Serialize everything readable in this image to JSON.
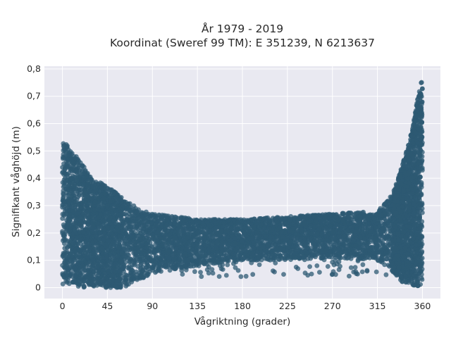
{
  "chart_data": {
    "type": "scatter",
    "title": "År 1979 - 2019",
    "subtitle": "Koordinat (Sweref 99 TM): E 351239, N 6213637",
    "xlabel": "Vågriktning (grader)",
    "ylabel": "Signifikant våghöjd (m)",
    "xlim": [
      -18,
      378
    ],
    "ylim": [
      -0.04,
      0.81
    ],
    "xticks": [
      0,
      45,
      90,
      135,
      180,
      225,
      270,
      315,
      360
    ],
    "yticks": [
      0,
      0.1,
      0.2,
      0.3,
      0.4,
      0.5,
      0.6,
      0.7,
      0.8
    ],
    "ytick_labels": [
      "0",
      "0,1",
      "0,2",
      "0,3",
      "0,4",
      "0,5",
      "0,6",
      "0,7",
      "0,8"
    ],
    "grid": true,
    "colors": {
      "marker": "#2e5a73",
      "plot_bg": "#e9e9f1",
      "grid": "#ffffff"
    },
    "envelope": [
      {
        "x": 0,
        "y_low": 0.01,
        "y_high": 0.54
      },
      {
        "x": 10,
        "y_low": 0.01,
        "y_high": 0.5
      },
      {
        "x": 20,
        "y_low": 0.0,
        "y_high": 0.45
      },
      {
        "x": 30,
        "y_low": 0.0,
        "y_high": 0.4
      },
      {
        "x": 45,
        "y_low": 0.0,
        "y_high": 0.37
      },
      {
        "x": 60,
        "y_low": 0.0,
        "y_high": 0.33
      },
      {
        "x": 75,
        "y_low": 0.02,
        "y_high": 0.29
      },
      {
        "x": 90,
        "y_low": 0.05,
        "y_high": 0.27
      },
      {
        "x": 135,
        "y_low": 0.08,
        "y_high": 0.25
      },
      {
        "x": 180,
        "y_low": 0.1,
        "y_high": 0.25
      },
      {
        "x": 225,
        "y_low": 0.1,
        "y_high": 0.26
      },
      {
        "x": 270,
        "y_low": 0.11,
        "y_high": 0.27
      },
      {
        "x": 315,
        "y_low": 0.1,
        "y_high": 0.28
      },
      {
        "x": 330,
        "y_low": 0.06,
        "y_high": 0.34
      },
      {
        "x": 340,
        "y_low": 0.02,
        "y_high": 0.45
      },
      {
        "x": 350,
        "y_low": 0.01,
        "y_high": 0.58
      },
      {
        "x": 355,
        "y_low": 0.0,
        "y_high": 0.7
      },
      {
        "x": 360,
        "y_low": 0.0,
        "y_high": 0.77
      }
    ]
  }
}
